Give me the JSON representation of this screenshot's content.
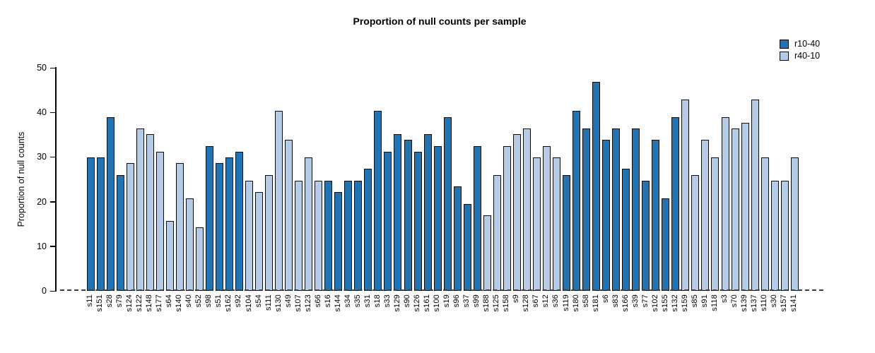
{
  "chart_data": {
    "type": "bar",
    "title": "Proportion of null counts per sample",
    "xlabel": "",
    "ylabel": "Proportion of null counts",
    "ylim": [
      0,
      50
    ],
    "y_ticks": [
      0,
      10,
      20,
      30,
      40,
      50
    ],
    "grid": false,
    "zero_line_style": "dashed",
    "legend_position": "top-right",
    "legend": [
      {
        "label": "r10-40",
        "color": "#2273b2"
      },
      {
        "label": "r40-10",
        "color": "#b6cbe6"
      }
    ],
    "bars": [
      {
        "label": "s11",
        "value": 29.9,
        "group": "r10-40"
      },
      {
        "label": "s151",
        "value": 29.9,
        "group": "r10-40"
      },
      {
        "label": "s28",
        "value": 39.0,
        "group": "r10-40"
      },
      {
        "label": "s79",
        "value": 26.0,
        "group": "r10-40"
      },
      {
        "label": "s124",
        "value": 28.6,
        "group": "r40-10"
      },
      {
        "label": "s122",
        "value": 36.4,
        "group": "r40-10"
      },
      {
        "label": "s148",
        "value": 35.1,
        "group": "r40-10"
      },
      {
        "label": "s177",
        "value": 31.2,
        "group": "r40-10"
      },
      {
        "label": "s64",
        "value": 15.6,
        "group": "r40-10"
      },
      {
        "label": "s140",
        "value": 28.6,
        "group": "r40-10"
      },
      {
        "label": "s40",
        "value": 20.8,
        "group": "r40-10"
      },
      {
        "label": "s52",
        "value": 14.3,
        "group": "r40-10"
      },
      {
        "label": "s98",
        "value": 32.5,
        "group": "r10-40"
      },
      {
        "label": "s51",
        "value": 28.6,
        "group": "r10-40"
      },
      {
        "label": "s162",
        "value": 29.9,
        "group": "r10-40"
      },
      {
        "label": "s92",
        "value": 31.2,
        "group": "r10-40"
      },
      {
        "label": "s104",
        "value": 24.7,
        "group": "r40-10"
      },
      {
        "label": "s54",
        "value": 22.1,
        "group": "r40-10"
      },
      {
        "label": "s111",
        "value": 26.0,
        "group": "r40-10"
      },
      {
        "label": "s130",
        "value": 40.3,
        "group": "r40-10"
      },
      {
        "label": "s49",
        "value": 33.8,
        "group": "r40-10"
      },
      {
        "label": "s107",
        "value": 24.7,
        "group": "r40-10"
      },
      {
        "label": "s123",
        "value": 29.9,
        "group": "r40-10"
      },
      {
        "label": "s66",
        "value": 24.7,
        "group": "r40-10"
      },
      {
        "label": "s16",
        "value": 24.7,
        "group": "r10-40"
      },
      {
        "label": "s144",
        "value": 22.1,
        "group": "r10-40"
      },
      {
        "label": "s34",
        "value": 24.7,
        "group": "r10-40"
      },
      {
        "label": "s35",
        "value": 24.7,
        "group": "r10-40"
      },
      {
        "label": "s31",
        "value": 27.3,
        "group": "r10-40"
      },
      {
        "label": "s18",
        "value": 40.3,
        "group": "r10-40"
      },
      {
        "label": "s33",
        "value": 31.2,
        "group": "r10-40"
      },
      {
        "label": "s129",
        "value": 35.1,
        "group": "r10-40"
      },
      {
        "label": "s90",
        "value": 33.8,
        "group": "r10-40"
      },
      {
        "label": "s126",
        "value": 31.2,
        "group": "r10-40"
      },
      {
        "label": "s161",
        "value": 35.1,
        "group": "r10-40"
      },
      {
        "label": "s100",
        "value": 32.5,
        "group": "r10-40"
      },
      {
        "label": "s19",
        "value": 39.0,
        "group": "r10-40"
      },
      {
        "label": "s96",
        "value": 23.4,
        "group": "r10-40"
      },
      {
        "label": "s37",
        "value": 19.5,
        "group": "r10-40"
      },
      {
        "label": "s99",
        "value": 32.5,
        "group": "r10-40"
      },
      {
        "label": "s188",
        "value": 16.9,
        "group": "r40-10"
      },
      {
        "label": "s125",
        "value": 26.0,
        "group": "r40-10"
      },
      {
        "label": "s158",
        "value": 32.5,
        "group": "r40-10"
      },
      {
        "label": "s9",
        "value": 35.1,
        "group": "r40-10"
      },
      {
        "label": "s128",
        "value": 36.4,
        "group": "r40-10"
      },
      {
        "label": "s67",
        "value": 29.9,
        "group": "r40-10"
      },
      {
        "label": "s12",
        "value": 32.5,
        "group": "r40-10"
      },
      {
        "label": "s36",
        "value": 29.9,
        "group": "r40-10"
      },
      {
        "label": "s119",
        "value": 26.0,
        "group": "r10-40"
      },
      {
        "label": "s180",
        "value": 40.3,
        "group": "r10-40"
      },
      {
        "label": "s58",
        "value": 36.4,
        "group": "r10-40"
      },
      {
        "label": "s181",
        "value": 46.8,
        "group": "r10-40"
      },
      {
        "label": "s6",
        "value": 33.8,
        "group": "r10-40"
      },
      {
        "label": "s83",
        "value": 36.4,
        "group": "r10-40"
      },
      {
        "label": "s166",
        "value": 27.3,
        "group": "r10-40"
      },
      {
        "label": "s39",
        "value": 36.4,
        "group": "r10-40"
      },
      {
        "label": "s77",
        "value": 24.7,
        "group": "r10-40"
      },
      {
        "label": "s102",
        "value": 33.8,
        "group": "r10-40"
      },
      {
        "label": "s155",
        "value": 20.8,
        "group": "r10-40"
      },
      {
        "label": "s132",
        "value": 39.0,
        "group": "r10-40"
      },
      {
        "label": "s159",
        "value": 42.9,
        "group": "r40-10"
      },
      {
        "label": "s85",
        "value": 26.0,
        "group": "r40-10"
      },
      {
        "label": "s91",
        "value": 33.8,
        "group": "r40-10"
      },
      {
        "label": "s118",
        "value": 29.9,
        "group": "r40-10"
      },
      {
        "label": "s3",
        "value": 39.0,
        "group": "r40-10"
      },
      {
        "label": "s70",
        "value": 36.4,
        "group": "r40-10"
      },
      {
        "label": "s139",
        "value": 37.7,
        "group": "r40-10"
      },
      {
        "label": "s137",
        "value": 42.9,
        "group": "r40-10"
      },
      {
        "label": "s110",
        "value": 29.9,
        "group": "r40-10"
      },
      {
        "label": "s30",
        "value": 24.7,
        "group": "r40-10"
      },
      {
        "label": "s157",
        "value": 24.7,
        "group": "r40-10"
      },
      {
        "label": "s141",
        "value": 29.9,
        "group": "r40-10"
      }
    ]
  }
}
